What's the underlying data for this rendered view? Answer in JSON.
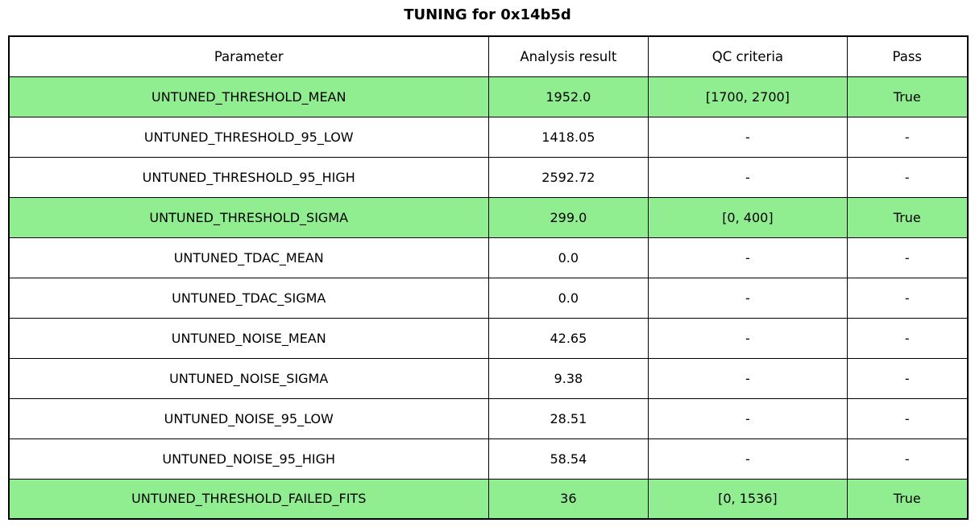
{
  "title": "TUNING for 0x14b5d",
  "colors": {
    "pass_row_bg": "#90EE90",
    "default_row_bg": "#FFFFFF",
    "border": "#000000",
    "text": "#000000"
  },
  "chart_data": {
    "type": "table",
    "title": "TUNING for 0x14b5d",
    "columns": [
      "Parameter",
      "Analysis result",
      "QC criteria",
      "Pass"
    ],
    "rows": [
      {
        "parameter": "UNTUNED_THRESHOLD_MEAN",
        "analysis_result": "1952.0",
        "qc_criteria": "[1700, 2700]",
        "pass": "True",
        "highlight": true
      },
      {
        "parameter": "UNTUNED_THRESHOLD_95_LOW",
        "analysis_result": "1418.05",
        "qc_criteria": "-",
        "pass": "-",
        "highlight": false
      },
      {
        "parameter": "UNTUNED_THRESHOLD_95_HIGH",
        "analysis_result": "2592.72",
        "qc_criteria": "-",
        "pass": "-",
        "highlight": false
      },
      {
        "parameter": "UNTUNED_THRESHOLD_SIGMA",
        "analysis_result": "299.0",
        "qc_criteria": "[0, 400]",
        "pass": "True",
        "highlight": true
      },
      {
        "parameter": "UNTUNED_TDAC_MEAN",
        "analysis_result": "0.0",
        "qc_criteria": "-",
        "pass": "-",
        "highlight": false
      },
      {
        "parameter": "UNTUNED_TDAC_SIGMA",
        "analysis_result": "0.0",
        "qc_criteria": "-",
        "pass": "-",
        "highlight": false
      },
      {
        "parameter": "UNTUNED_NOISE_MEAN",
        "analysis_result": "42.65",
        "qc_criteria": "-",
        "pass": "-",
        "highlight": false
      },
      {
        "parameter": "UNTUNED_NOISE_SIGMA",
        "analysis_result": "9.38",
        "qc_criteria": "-",
        "pass": "-",
        "highlight": false
      },
      {
        "parameter": "UNTUNED_NOISE_95_LOW",
        "analysis_result": "28.51",
        "qc_criteria": "-",
        "pass": "-",
        "highlight": false
      },
      {
        "parameter": "UNTUNED_NOISE_95_HIGH",
        "analysis_result": "58.54",
        "qc_criteria": "-",
        "pass": "-",
        "highlight": false
      },
      {
        "parameter": "UNTUNED_THRESHOLD_FAILED_FITS",
        "analysis_result": "36",
        "qc_criteria": "[0, 1536]",
        "pass": "True",
        "highlight": true
      }
    ],
    "highlighted_row_indices": [
      0,
      3,
      10
    ],
    "layout": {
      "grid": true,
      "cell_borders": true,
      "highlight_meaning": "QC passed rows shown in green"
    }
  }
}
